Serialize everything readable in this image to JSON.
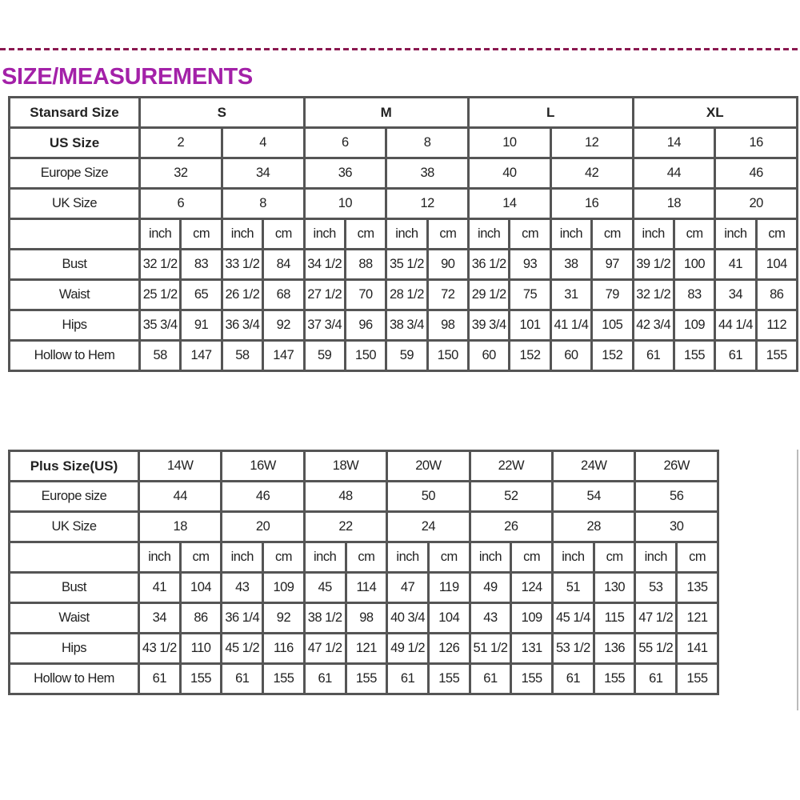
{
  "title": "SIZE/MEASUREMENTS",
  "colors": {
    "title": "#a321a8",
    "divider": "#8a1850",
    "grid": "#555555"
  },
  "standard_table": {
    "header_label": "Stansard Size",
    "groups": [
      "S",
      "M",
      "L",
      "XL"
    ],
    "us_label": "US Size",
    "us": [
      "2",
      "4",
      "6",
      "8",
      "10",
      "12",
      "14",
      "16"
    ],
    "europe_label": "Europe Size",
    "europe": [
      "32",
      "34",
      "36",
      "38",
      "40",
      "42",
      "44",
      "46"
    ],
    "uk_label": "UK Size",
    "uk": [
      "6",
      "8",
      "10",
      "12",
      "14",
      "16",
      "18",
      "20"
    ],
    "units": [
      "inch",
      "cm"
    ],
    "rows": [
      {
        "label": "Bust",
        "values": [
          "32 1/2",
          "83",
          "33 1/2",
          "84",
          "34 1/2",
          "88",
          "35 1/2",
          "90",
          "36 1/2",
          "93",
          "38",
          "97",
          "39 1/2",
          "100",
          "41",
          "104"
        ]
      },
      {
        "label": "Waist",
        "values": [
          "25 1/2",
          "65",
          "26 1/2",
          "68",
          "27 1/2",
          "70",
          "28 1/2",
          "72",
          "29 1/2",
          "75",
          "31",
          "79",
          "32 1/2",
          "83",
          "34",
          "86"
        ]
      },
      {
        "label": "Hips",
        "values": [
          "35 3/4",
          "91",
          "36 3/4",
          "92",
          "37 3/4",
          "96",
          "38 3/4",
          "98",
          "39 3/4",
          "101",
          "41 1/4",
          "105",
          "42 3/4",
          "109",
          "44 1/4",
          "112"
        ]
      },
      {
        "label": "Hollow to Hem",
        "values": [
          "58",
          "147",
          "58",
          "147",
          "59",
          "150",
          "59",
          "150",
          "60",
          "152",
          "60",
          "152",
          "61",
          "155",
          "61",
          "155"
        ]
      }
    ]
  },
  "plus_table": {
    "header_label": "Plus Size(US)",
    "sizes": [
      "14W",
      "16W",
      "18W",
      "20W",
      "22W",
      "24W",
      "26W"
    ],
    "europe_label": "Europe size",
    "europe": [
      "44",
      "46",
      "48",
      "50",
      "52",
      "54",
      "56"
    ],
    "uk_label": "UK Size",
    "uk": [
      "18",
      "20",
      "22",
      "24",
      "26",
      "28",
      "30"
    ],
    "units": [
      "inch",
      "cm"
    ],
    "rows": [
      {
        "label": "Bust",
        "values": [
          "41",
          "104",
          "43",
          "109",
          "45",
          "114",
          "47",
          "119",
          "49",
          "124",
          "51",
          "130",
          "53",
          "135"
        ]
      },
      {
        "label": "Waist",
        "values": [
          "34",
          "86",
          "36 1/4",
          "92",
          "38 1/2",
          "98",
          "40 3/4",
          "104",
          "43",
          "109",
          "45 1/4",
          "115",
          "47 1/2",
          "121"
        ]
      },
      {
        "label": "Hips",
        "values": [
          "43 1/2",
          "110",
          "45 1/2",
          "116",
          "47 1/2",
          "121",
          "49 1/2",
          "126",
          "51 1/2",
          "131",
          "53 1/2",
          "136",
          "55 1/2",
          "141"
        ]
      },
      {
        "label": "Hollow to Hem",
        "values": [
          "61",
          "155",
          "61",
          "155",
          "61",
          "155",
          "61",
          "155",
          "61",
          "155",
          "61",
          "155",
          "61",
          "155"
        ]
      }
    ]
  }
}
